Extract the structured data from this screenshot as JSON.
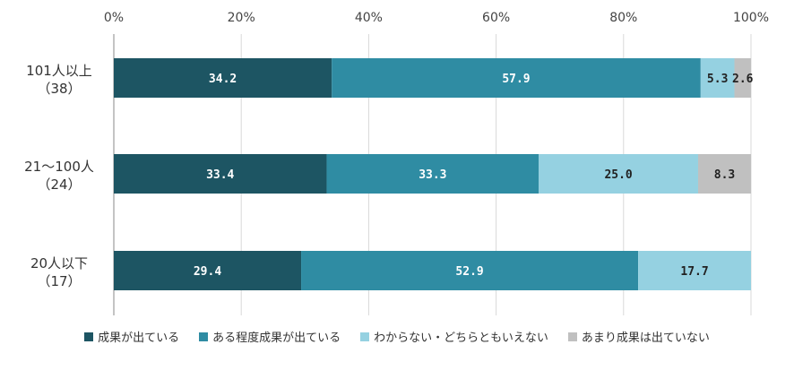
{
  "chart_data": {
    "type": "bar",
    "orientation": "horizontal",
    "stacked": true,
    "categories": [
      {
        "name": "101人以上",
        "count": "（38）"
      },
      {
        "name": "21～100人",
        "count": "（24）"
      },
      {
        "name": "20人以下",
        "count": "（17）"
      }
    ],
    "series": [
      {
        "name": "成果が出ている",
        "color": "#1d5563",
        "label_color": "#ffffff",
        "values": [
          34.2,
          33.4,
          29.4
        ]
      },
      {
        "name": "ある程度成果が出ている",
        "color": "#2f8ca3",
        "label_color": "#ffffff",
        "values": [
          57.9,
          33.3,
          52.9
        ]
      },
      {
        "name": "わからない・どちらともいえない",
        "color": "#95d1e1",
        "label_color": "#222222",
        "values": [
          5.3,
          25.0,
          17.7
        ]
      },
      {
        "name": "あまり成果は出ていない",
        "color": "#c0c0c0",
        "label_color": "#222222",
        "values": [
          2.6,
          8.3,
          0
        ]
      }
    ],
    "xlim": [
      0,
      100
    ],
    "x_ticks": [
      "0%",
      "20%",
      "40%",
      "60%",
      "80%",
      "100%"
    ],
    "grid": true,
    "legend_position": "bottom"
  }
}
